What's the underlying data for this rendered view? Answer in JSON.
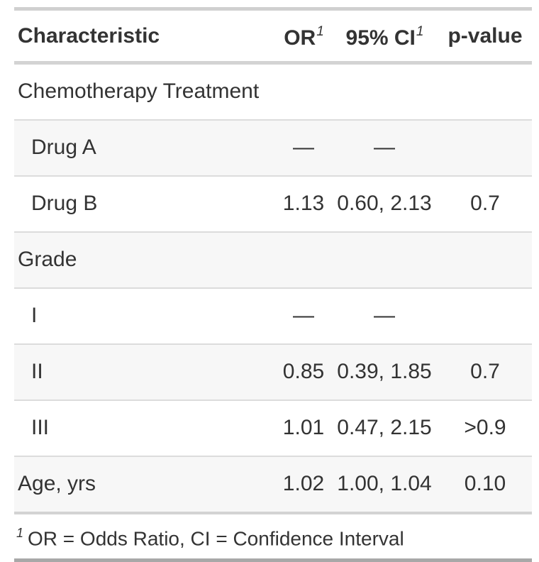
{
  "chart_data": {
    "type": "table",
    "description": "Logistic regression summary table (odds ratios with confidence intervals)",
    "columns": [
      "Characteristic",
      "OR",
      "95% CI",
      "p-value"
    ],
    "column_footnote_marks": [
      "",
      "1",
      "1",
      ""
    ],
    "rows": [
      {
        "label": "Chemotherapy Treatment",
        "indent": false,
        "or": "",
        "ci": "",
        "p": ""
      },
      {
        "label": "Drug A",
        "indent": true,
        "or": "—",
        "ci": "—",
        "p": ""
      },
      {
        "label": "Drug B",
        "indent": true,
        "or": "1.13",
        "ci": "0.60, 2.13",
        "p": "0.7"
      },
      {
        "label": "Grade",
        "indent": false,
        "or": "",
        "ci": "",
        "p": ""
      },
      {
        "label": "I",
        "indent": true,
        "or": "—",
        "ci": "—",
        "p": ""
      },
      {
        "label": "II",
        "indent": true,
        "or": "0.85",
        "ci": "0.39, 1.85",
        "p": "0.7"
      },
      {
        "label": "III",
        "indent": true,
        "or": "1.01",
        "ci": "0.47, 2.15",
        "p": ">0.9"
      },
      {
        "label": "Age, yrs",
        "indent": false,
        "or": "1.02",
        "ci": "1.00, 1.04",
        "p": "0.10"
      }
    ],
    "footnote": {
      "mark": "1",
      "text": "OR = Odds Ratio, CI = Confidence Interval"
    },
    "layout": {
      "striped_row_indices": [
        1,
        3,
        5,
        7
      ],
      "grid": "horizontal-rules-only"
    },
    "colors": {
      "text": "#333333",
      "border_top": "#d0d0d0",
      "border_header_bottom": "#d3d3d3",
      "row_divider": "#dcdcdc",
      "footnote_divider": "#d3d3d3",
      "border_bottom": "#a8a8a8",
      "stripe_background": "#f7f7f7",
      "background": "#ffffff"
    }
  }
}
